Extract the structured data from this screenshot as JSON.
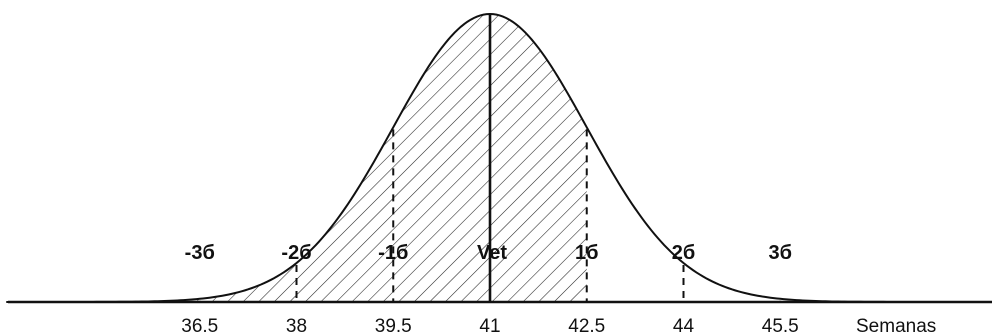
{
  "chart_data": {
    "type": "area",
    "title": "",
    "xlabel": "Semanas",
    "ylabel": "",
    "xlim": [
      33.5,
      48.5
    ],
    "mean": 41,
    "sd": 1.5,
    "shaded_range": [
      33.5,
      42.5
    ],
    "x_ticks": [
      36.5,
      38,
      39.5,
      41,
      42.5,
      44,
      45.5
    ],
    "x_tick_labels": [
      "36.5",
      "38",
      "39.5",
      "41",
      "42.5",
      "44",
      "45.5"
    ],
    "sd_markers": [
      {
        "label": "-3б",
        "x": 36.5
      },
      {
        "label": "-2б",
        "x": 38
      },
      {
        "label": "-1б",
        "x": 39.5
      },
      {
        "label": "Vet",
        "x": 41
      },
      {
        "label": "1б",
        "x": 42.5
      },
      {
        "label": "2б",
        "x": 44
      },
      {
        "label": "3б",
        "x": 45.5
      }
    ],
    "grid": false,
    "legend": "none"
  }
}
